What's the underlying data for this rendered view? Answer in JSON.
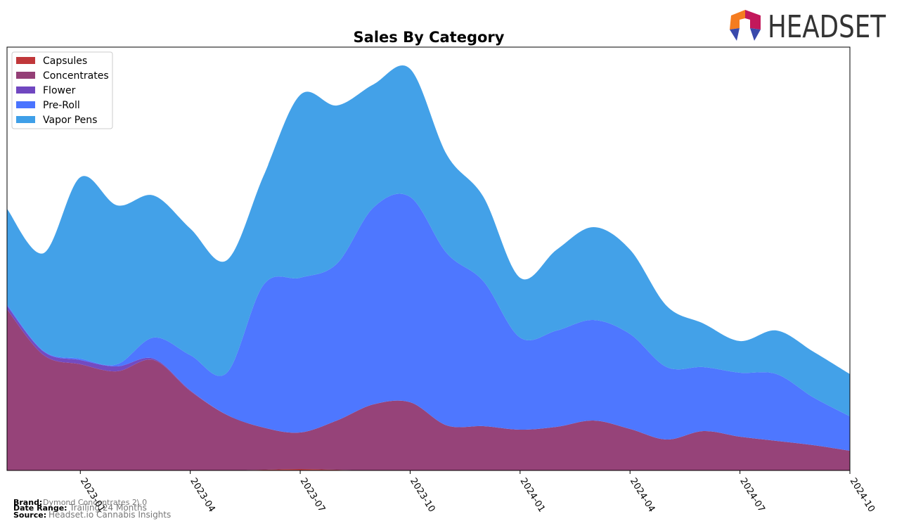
{
  "chart_data": {
    "type": "stacked_area",
    "title": "Sales By Category",
    "x": [
      "2022-11",
      "2022-12",
      "2023-01",
      "2023-02",
      "2023-03",
      "2023-04",
      "2023-05",
      "2023-06",
      "2023-07",
      "2023-08",
      "2023-09",
      "2023-10",
      "2023-11",
      "2023-12",
      "2024-01",
      "2024-02",
      "2024-03",
      "2024-04",
      "2024-05",
      "2024-06",
      "2024-07",
      "2024-08",
      "2024-09",
      "2024-10"
    ],
    "xticks": [
      "2023-01",
      "2023-04",
      "2023-07",
      "2023-10",
      "2024-01",
      "2024-04",
      "2024-07",
      "2024-10"
    ],
    "ylim": [
      0,
      602
    ],
    "legend": "upper left",
    "series": [
      {
        "name": "Capsules",
        "color": "#c0373a",
        "values": [
          0,
          0,
          0,
          0,
          0,
          0,
          0,
          1,
          2,
          1,
          0,
          0,
          0,
          0,
          0,
          0,
          0,
          0,
          0,
          0,
          0,
          0,
          0,
          0
        ]
      },
      {
        "name": "Concentrates",
        "color": "#943f76",
        "values": [
          229,
          164,
          151,
          141,
          157,
          113,
          79,
          60,
          52,
          70,
          94,
          97,
          64,
          63,
          58,
          62,
          71,
          59,
          44,
          56,
          48,
          42,
          36,
          28
        ]
      },
      {
        "name": "Flower",
        "color": "#7047c0",
        "values": [
          5,
          5,
          6,
          7,
          2,
          1,
          0,
          0,
          0,
          0,
          0,
          0,
          0,
          0,
          0,
          0,
          0,
          0,
          0,
          0,
          0,
          0,
          0,
          0
        ]
      },
      {
        "name": "Pre-Roll",
        "color": "#4a74ff",
        "values": [
          2,
          1,
          2,
          3,
          30,
          50,
          60,
          203,
          220,
          223,
          280,
          292,
          245,
          206,
          131,
          137,
          143,
          135,
          103,
          91,
          91,
          95,
          68,
          49
        ]
      },
      {
        "name": "Vapor Pens",
        "color": "#3f9fe8",
        "values": [
          136,
          139,
          258,
          226,
          202,
          180,
          160,
          155,
          260,
          225,
          175,
          182,
          140,
          120,
          85,
          115,
          132,
          120,
          87,
          62,
          45,
          62,
          65,
          60
        ]
      }
    ]
  },
  "logo": {
    "text": "HEADSET"
  },
  "footer": {
    "brand_label": "Brand:",
    "brand": "Dymond Concentrates 2\\.0",
    "range_label": "Date Range:",
    "range": "Trailing 24 Months",
    "source_label": "Source:",
    "source": "Headset.io Cannabis Insights"
  }
}
